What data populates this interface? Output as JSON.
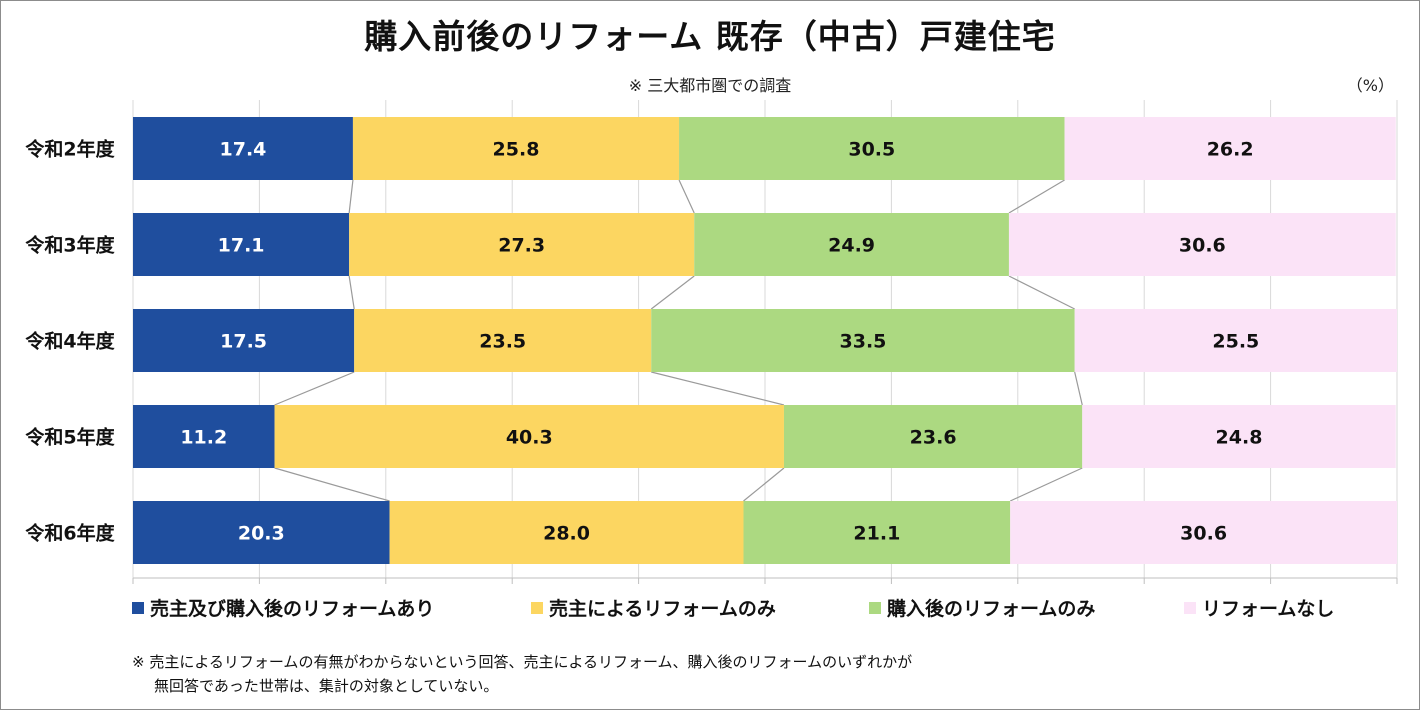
{
  "chart_data": {
    "type": "bar",
    "orientation": "horizontal",
    "stacked": true,
    "title": "購入前後のリフォーム 既存（中古）戸建住宅",
    "subtitle": "※ 三大都市圏での調査",
    "unit_label": "（%）",
    "categories": [
      "令和2年度",
      "令和3年度",
      "令和4年度",
      "令和5年度",
      "令和6年度"
    ],
    "xlim": [
      0,
      100
    ],
    "series": [
      {
        "name": "売主及び購入後のリフォームあり",
        "color": "#1f4e9e",
        "label_color": "#ffffff",
        "values": [
          17.4,
          17.1,
          17.5,
          11.2,
          20.3
        ]
      },
      {
        "name": "売主によるリフォームのみ",
        "color": "#fcd661",
        "label_color": "#111111",
        "values": [
          25.8,
          27.3,
          23.5,
          40.3,
          28.0
        ]
      },
      {
        "name": "購入後のリフォームのみ",
        "color": "#acd981",
        "label_color": "#111111",
        "values": [
          30.5,
          24.9,
          33.5,
          23.6,
          21.1
        ]
      },
      {
        "name": "リフォームなし",
        "color": "#fbe3f7",
        "label_color": "#111111",
        "values": [
          26.2,
          30.6,
          25.5,
          24.8,
          30.6
        ]
      }
    ],
    "value_labels": [
      [
        "17.4",
        "25.8",
        "30.5",
        "26.2"
      ],
      [
        "17.1",
        "27.3",
        "24.9",
        "30.6"
      ],
      [
        "17.5",
        "23.5",
        "33.5",
        "25.5"
      ],
      [
        "11.2",
        "40.3",
        "23.6",
        "24.8"
      ],
      [
        "20.3",
        "28.0",
        "21.1",
        "30.6"
      ]
    ],
    "gridlines": true,
    "legend_position": "bottom"
  },
  "footnote": {
    "line1": "※ 売主によるリフォームの有無がわからないという回答、売主によるリフォーム、購入後のリフォームのいずれかが",
    "line2": "無回答であった世帯は、集計の対象としていない。"
  }
}
